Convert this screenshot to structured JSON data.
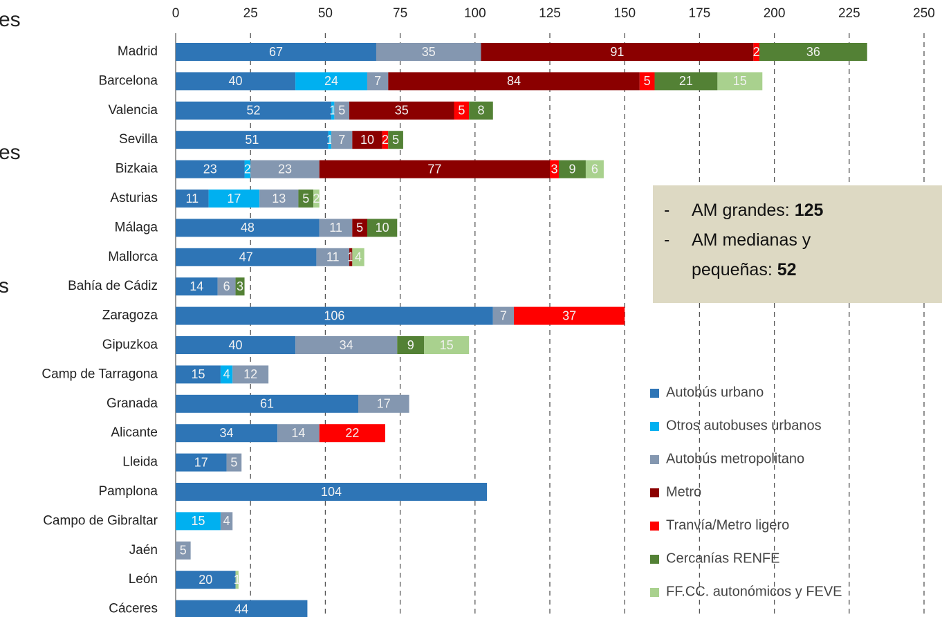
{
  "chart_data": {
    "type": "bar",
    "orientation": "horizontal",
    "stacked": true,
    "categories": [
      "Madrid",
      "Barcelona",
      "Valencia",
      "Sevilla",
      "Bizkaia",
      "Asturias",
      "Málaga",
      "Mallorca",
      "Bahía de Cádiz",
      "Zaragoza",
      "Gipuzkoa",
      "Camp de Tarragona",
      "Granada",
      "Alicante",
      "Lleida",
      "Pamplona",
      "Campo de Gibraltar",
      "Jaén",
      "León",
      "Cáceres"
    ],
    "series": [
      {
        "name": "Autobús urbano",
        "color": "#2e75b6",
        "values": [
          67,
          40,
          52,
          51,
          23,
          11,
          48,
          47,
          14,
          106,
          40,
          15,
          61,
          34,
          17,
          104,
          null,
          null,
          20,
          44
        ]
      },
      {
        "name": "Otros autobuses urbanos",
        "color": "#00b0f0",
        "values": [
          null,
          24,
          1,
          1,
          2,
          17,
          null,
          null,
          null,
          null,
          null,
          4,
          null,
          null,
          null,
          null,
          15,
          null,
          null,
          null
        ]
      },
      {
        "name": "Autobús metropolitano",
        "color": "#8497b0",
        "values": [
          35,
          7,
          5,
          7,
          23,
          13,
          11,
          11,
          6,
          7,
          34,
          12,
          17,
          14,
          5,
          null,
          4,
          5,
          null,
          null
        ]
      },
      {
        "name": "Metro",
        "color": "#8b0000",
        "values": [
          91,
          84,
          35,
          10,
          77,
          null,
          5,
          1,
          null,
          null,
          null,
          null,
          null,
          null,
          null,
          null,
          null,
          null,
          null,
          null
        ]
      },
      {
        "name": "Tranvía/Metro ligero",
        "color": "#ff0000",
        "values": [
          2,
          5,
          5,
          2,
          3,
          null,
          null,
          null,
          null,
          37,
          null,
          null,
          null,
          22,
          null,
          null,
          null,
          null,
          null,
          null
        ]
      },
      {
        "name": "Cercanías RENFE",
        "color": "#538135",
        "values": [
          36,
          21,
          8,
          5,
          9,
          5,
          10,
          null,
          3,
          null,
          9,
          null,
          null,
          null,
          null,
          null,
          null,
          null,
          null,
          null
        ]
      },
      {
        "name": "FF.CC. autonómicos y FEVE",
        "color": "#a9d18e",
        "values": [
          null,
          15,
          null,
          null,
          6,
          2,
          null,
          4,
          null,
          null,
          15,
          null,
          null,
          null,
          null,
          null,
          null,
          null,
          1,
          null
        ]
      }
    ],
    "xlim": [
      0,
      250
    ],
    "xticks": [
      0,
      25,
      50,
      75,
      100,
      125,
      150,
      175,
      200,
      225,
      250
    ],
    "grid": true,
    "legend": "right",
    "annotations": [
      {
        "bullet": "-",
        "lines": [
          "AM grandes:"
        ],
        "bold": "125"
      },
      {
        "bullet": "-",
        "lines": [
          "AM medianas y",
          "pequeñas:"
        ],
        "bold": "52"
      }
    ],
    "fragments": [
      "es",
      "es",
      "s"
    ]
  }
}
